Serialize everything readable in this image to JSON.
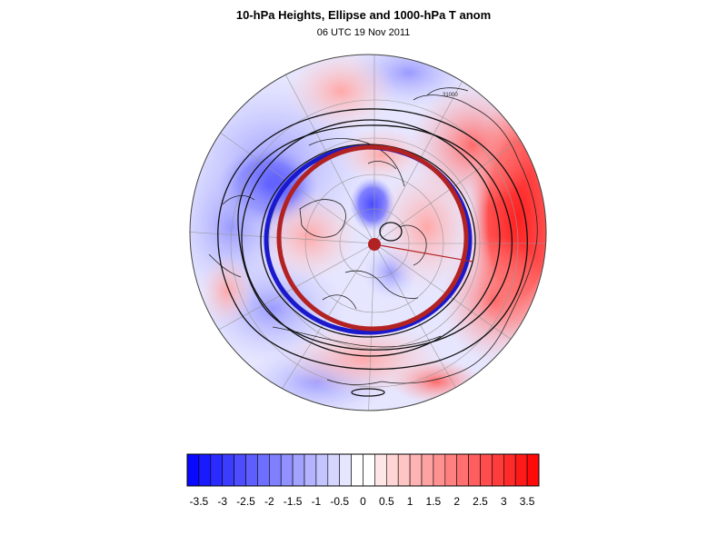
{
  "title": "10-hPa Heights, Ellipse and 1000-hPa T anom",
  "subtitle": "06 UTC 19 Nov 2011",
  "colors": {
    "ellipse_red": "#b22222",
    "ellipse_blue": "#1a1acc",
    "contour": "#111111",
    "coast": "#222222",
    "grid": "#999999"
  },
  "colorbar": {
    "min": -3.75,
    "max": 3.75,
    "step": 0.25,
    "tick_labels": [
      "-3.5",
      "-3",
      "-2.5",
      "-2",
      "-1.5",
      "-1",
      "-0.5",
      "0",
      "0.5",
      "1",
      "1.5",
      "2",
      "2.5",
      "3",
      "3.5"
    ],
    "tick_values": [
      -3.5,
      -3,
      -2.5,
      -2,
      -1.5,
      -1,
      -0.5,
      0,
      0.5,
      1,
      1.5,
      2,
      2.5,
      3,
      3.5
    ]
  },
  "contour_labels": [
    "31000"
  ]
}
